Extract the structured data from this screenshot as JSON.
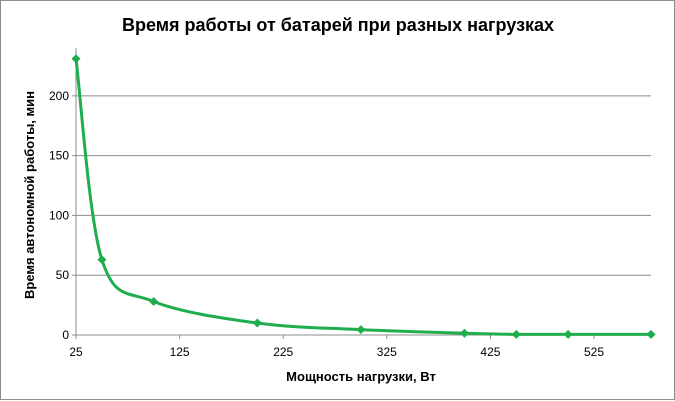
{
  "chart_data": {
    "type": "line",
    "title": "Время работы от батарей при разных нагрузках",
    "xlabel": "Мощность нагрузки, Вт",
    "ylabel": "Время автономной работы, мин",
    "xlim": [
      25,
      580
    ],
    "ylim": [
      0,
      240
    ],
    "x_ticks": [
      25,
      125,
      225,
      325,
      425,
      525
    ],
    "y_ticks": [
      0,
      50,
      100,
      150,
      200
    ],
    "grid": "horizontal",
    "smooth": true,
    "colors": {
      "series": "#1fae4d",
      "grid": "#8c8c8c"
    },
    "series": [
      {
        "marker": "diamond",
        "x": [
          25,
          50,
          100,
          200,
          300,
          400,
          450,
          500,
          580
        ],
        "y": [
          231,
          63,
          28,
          10,
          4.5,
          1.5,
          0.5,
          0.5,
          0.5
        ]
      }
    ]
  }
}
